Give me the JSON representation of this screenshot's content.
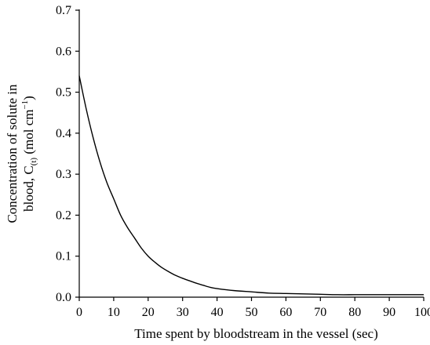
{
  "chart_data": {
    "type": "line",
    "xlabel": "Time spent by bloodstream in the vessel (sec)",
    "ylabel_line1": "Concentration of solute in",
    "ylabel_line2_prefix": "blood, C",
    "ylabel_line2_subscript": "(t)",
    "ylabel_line2_suffix": " (mol cm",
    "ylabel_line2_superscript": "−1",
    "ylabel_line2_close": ")",
    "xlim": [
      0,
      100
    ],
    "ylim": [
      0,
      0.7
    ],
    "x_ticks": [
      0,
      10,
      20,
      30,
      40,
      50,
      60,
      70,
      80,
      90,
      100
    ],
    "y_ticks": [
      0.0,
      0.1,
      0.2,
      0.3,
      0.4,
      0.5,
      0.6,
      0.7
    ],
    "x_tick_labels": [
      "0",
      "10",
      "20",
      "30",
      "40",
      "50",
      "60",
      "70",
      "80",
      "90",
      "100"
    ],
    "y_tick_labels": [
      "0.0",
      "0.1",
      "0.2",
      "0.3",
      "0.4",
      "0.5",
      "0.6",
      "0.7"
    ],
    "grid": false,
    "series": [
      {
        "color": "#000000",
        "x": [
          0,
          2,
          4,
          6,
          8,
          10,
          12,
          14,
          16,
          18,
          20,
          22,
          24,
          26,
          28,
          30,
          32,
          34,
          36,
          38,
          40,
          45,
          50,
          55,
          60,
          65,
          70,
          75,
          80,
          85,
          90,
          95,
          100
        ],
        "y": [
          0.54,
          0.46,
          0.39,
          0.33,
          0.28,
          0.24,
          0.2,
          0.17,
          0.145,
          0.12,
          0.1,
          0.085,
          0.072,
          0.062,
          0.053,
          0.046,
          0.04,
          0.034,
          0.029,
          0.024,
          0.021,
          0.016,
          0.013,
          0.01,
          0.009,
          0.008,
          0.007,
          0.006,
          0.006,
          0.006,
          0.006,
          0.006,
          0.006
        ]
      }
    ]
  }
}
